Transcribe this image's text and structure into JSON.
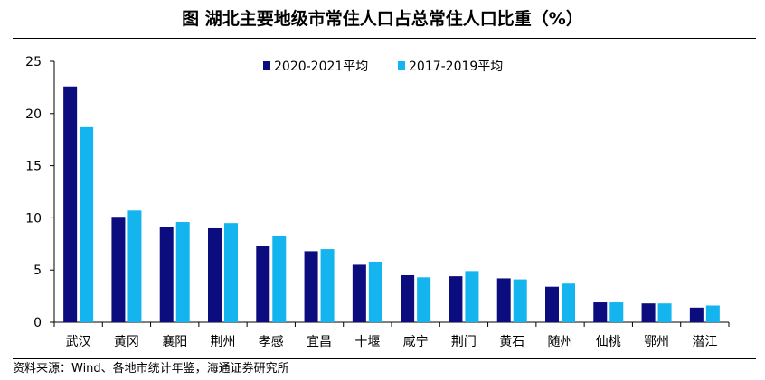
{
  "header": {
    "title": "图 湖北主要地级市常住人口占总常住人口比重（%）"
  },
  "footer": {
    "source": "资料来源：Wind、各地市统计年鉴，海通证券研究所"
  },
  "colors": {
    "series_a": "#0b0c7d",
    "series_b": "#14b4ef",
    "axis": "#000000"
  },
  "chart_data": {
    "type": "bar",
    "title": "图 湖北主要地级市常住人口占总常住人口比重（%）",
    "xlabel": "",
    "ylabel": "",
    "ylim": [
      0,
      25
    ],
    "yticks": [
      0,
      5,
      10,
      15,
      20,
      25
    ],
    "grid": false,
    "legend_position": "top-center",
    "categories": [
      "武汉",
      "黄冈",
      "襄阳",
      "荆州",
      "孝感",
      "宜昌",
      "十堰",
      "咸宁",
      "荆门",
      "黄石",
      "随州",
      "仙桃",
      "鄂州",
      "潜江"
    ],
    "series": [
      {
        "name": "2020-2021平均",
        "values": [
          22.6,
          10.1,
          9.1,
          9.0,
          7.3,
          6.8,
          5.5,
          4.5,
          4.4,
          4.2,
          3.4,
          1.9,
          1.8,
          1.4
        ]
      },
      {
        "name": "2017-2019平均",
        "values": [
          18.7,
          10.7,
          9.6,
          9.5,
          8.3,
          7.0,
          5.8,
          4.3,
          4.9,
          4.1,
          3.7,
          1.9,
          1.8,
          1.6
        ]
      }
    ]
  }
}
